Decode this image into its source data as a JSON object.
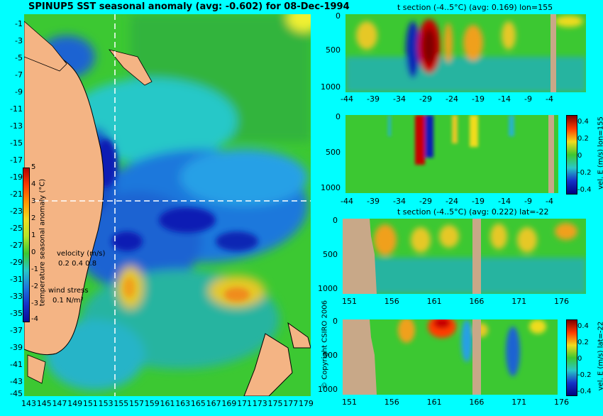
{
  "figure_title": "SPINUP5 SST seasonal anomaly (avg: -0.602) for 08-Dec-1994",
  "copyright": "© Copyright CSIRO 2006",
  "colors": {
    "background": "#00ffff",
    "land": "#f4b484",
    "section_land": "#c8a888",
    "marker_line": "#ffffff",
    "vector": "#ff00ff"
  },
  "map": {
    "lat_ticks": [
      "-1",
      "-3",
      "-5",
      "-7",
      "-9",
      "-11",
      "-13",
      "-15",
      "-17",
      "-19",
      "-21",
      "-23",
      "-25",
      "-27",
      "-29",
      "-31",
      "-33",
      "-35",
      "-37",
      "-39",
      "-41",
      "-43",
      "-45"
    ],
    "lon_ticks": [
      "143",
      "145",
      "147",
      "149",
      "151",
      "153",
      "155",
      "157",
      "159",
      "161",
      "163",
      "165",
      "167",
      "169",
      "171",
      "173",
      "175",
      "177",
      "179"
    ],
    "colorbar_label": "temperature seasonal anomaly (°C)",
    "colorbar_ticks": [
      "5",
      "4",
      "3",
      "2",
      "1",
      "0",
      "-1",
      "-2",
      "-3",
      "-4"
    ],
    "velocity_label": "velocity (m/s)",
    "velocity_scale": "0.2 0.4 0.8",
    "wind_label": "wind stress",
    "wind_scale": "0.1 N/m²"
  },
  "chart_data": [
    {
      "type": "heatmap",
      "title": "SPINUP5 SST seasonal anomaly (avg: -0.602) for 08-Dec-1994",
      "x_range": [
        143,
        180
      ],
      "y_range": [
        -45,
        0
      ],
      "marker_lon": 155,
      "marker_lat": -22,
      "colorbar": [
        -4,
        5
      ]
    },
    {
      "type": "heatmap",
      "title": "t section (-4..5°C) (avg: 0.169) lon=155",
      "x_ticks": [
        "-44",
        "-39",
        "-34",
        "-29",
        "-24",
        "-19",
        "-14",
        "-9",
        "-4"
      ],
      "y_ticks": [
        "0",
        "500",
        "1000"
      ],
      "warm_cores_lat": [
        -29,
        -31,
        -26,
        -22,
        -16
      ],
      "cold_cores_lat": [
        -32,
        -27
      ]
    },
    {
      "type": "heatmap",
      "title": "",
      "x_ticks": [
        "-44",
        "-39",
        "-34",
        "-29",
        "-24",
        "-19",
        "-14",
        "-9",
        "-4"
      ],
      "y_ticks": [
        "0",
        "500",
        "1000"
      ],
      "colorbar_label": "vel. E (m/s) lon=155",
      "colorbar_ticks": [
        "0.4",
        "0.2",
        "0",
        "-0.2",
        "-0.4"
      ]
    },
    {
      "type": "heatmap",
      "title": "t section (-4..5°C) (avg: 0.222) lat=-22",
      "x_ticks": [
        "151",
        "156",
        "161",
        "166",
        "171",
        "176"
      ],
      "y_ticks": [
        "0",
        "500",
        "1000"
      ]
    },
    {
      "type": "heatmap",
      "title": "",
      "x_ticks": [
        "151",
        "156",
        "161",
        "166",
        "171",
        "176"
      ],
      "y_ticks": [
        "0",
        "500",
        "1000"
      ],
      "colorbar_label": "vel. E (m/s) lat=-22",
      "colorbar_ticks": [
        "0.4",
        "0.2",
        "0",
        "-0.2",
        "-0.4"
      ]
    }
  ]
}
